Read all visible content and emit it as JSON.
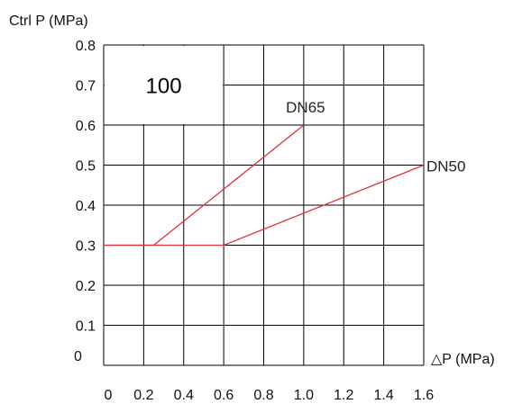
{
  "chart_data": {
    "type": "line",
    "ylabel": "Ctrl P (MPa)",
    "xlabel": "△P (MPa)",
    "x_ticks": [
      "0",
      "0.2",
      "0.4",
      "0.6",
      "0.8",
      "1.0",
      "1.2",
      "1.4",
      "1.6"
    ],
    "y_ticks": [
      "0",
      "0.1",
      "0.2",
      "0.3",
      "0.4",
      "0.5",
      "0.6",
      "0.7",
      "0.8"
    ],
    "xlim": [
      0,
      1.6
    ],
    "ylim": [
      0,
      0.8
    ],
    "grid": true,
    "region_label": "100",
    "series_color": "#e0323c",
    "series": [
      {
        "name": "DN65",
        "x": [
          0,
          0.25,
          1.0
        ],
        "y": [
          0.3,
          0.3,
          0.6
        ]
      },
      {
        "name": "DN50",
        "x": [
          0,
          0.6,
          1.6
        ],
        "y": [
          0.3,
          0.3,
          0.5
        ]
      }
    ]
  }
}
